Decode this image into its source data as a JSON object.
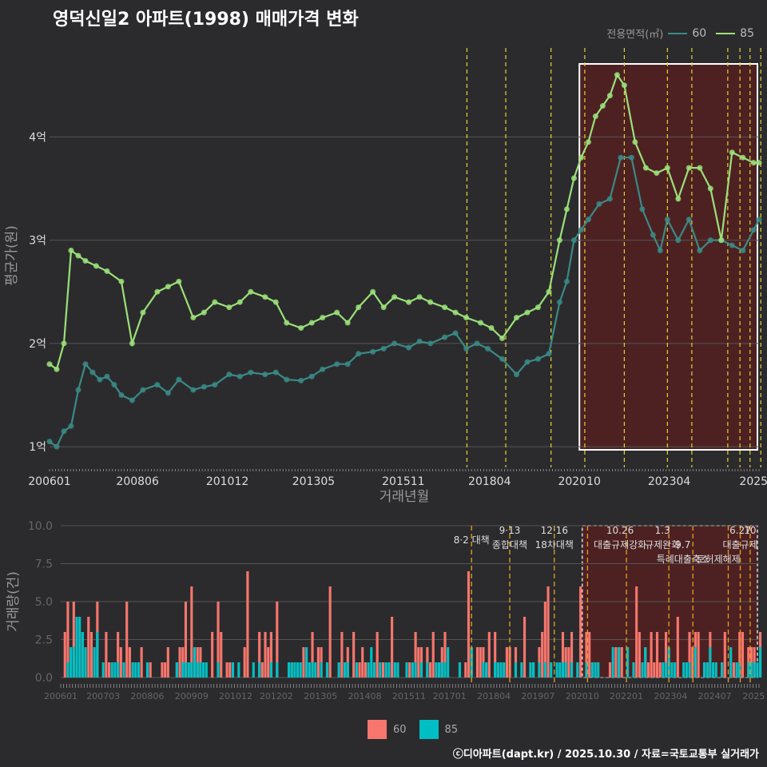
{
  "title": "영덕신일2 아파트(1998) 매매가격 변화",
  "footer": "ⓒ디아파트(dapt.kr) / 2025.10.30 / 자료=국토교통부 실거래가",
  "colors": {
    "s60": "#3a8a86",
    "s85": "#9be07a",
    "bar60": "#f8766d",
    "bar85": "#00bfc4",
    "policy": "#e6d430",
    "highlight": "#5a1f1f"
  },
  "legend_top": {
    "title": "전용면적(㎡)",
    "items": [
      "60",
      "85"
    ]
  },
  "legend_bottom": {
    "items": [
      "60",
      "85"
    ]
  },
  "chart_data": [
    {
      "type": "line",
      "title": "영덕신일2 아파트(1998) 매매가격 변화",
      "xlabel": "거래년월",
      "ylabel": "평균가(원)",
      "x_ticks": [
        "200601",
        "200806",
        "201012",
        "201305",
        "201511",
        "201804",
        "202010",
        "202304",
        "2025"
      ],
      "y_ticks": [
        "1억",
        "2억",
        "3억",
        "4억"
      ],
      "ylim": [
        0.8,
        4.9
      ],
      "xlim": [
        2006.0,
        2025.75
      ],
      "policy_dates": [
        2017.62,
        2018.7,
        2019.96,
        2020.9,
        2022.0,
        2023.2,
        2023.88,
        2024.88,
        2025.22,
        2025.5,
        2025.8
      ],
      "highlight_range": [
        2020.75,
        2025.75
      ],
      "series": [
        {
          "name": "60",
          "x": [
            2006.0,
            2006.2,
            2006.4,
            2006.6,
            2006.8,
            2007.0,
            2007.2,
            2007.4,
            2007.6,
            2007.8,
            2008.0,
            2008.3,
            2008.6,
            2009.0,
            2009.3,
            2009.6,
            2010.0,
            2010.3,
            2010.6,
            2011.0,
            2011.3,
            2011.6,
            2012.0,
            2012.3,
            2012.6,
            2013.0,
            2013.3,
            2013.6,
            2014.0,
            2014.3,
            2014.6,
            2015.0,
            2015.3,
            2015.6,
            2016.0,
            2016.3,
            2016.6,
            2017.0,
            2017.3,
            2017.6,
            2017.9,
            2018.2,
            2018.6,
            2019.0,
            2019.3,
            2019.6,
            2019.9,
            2020.2,
            2020.4,
            2020.6,
            2020.8,
            2021.0,
            2021.3,
            2021.6,
            2021.9,
            2022.2,
            2022.5,
            2022.8,
            2023.0,
            2023.2,
            2023.5,
            2023.8,
            2024.1,
            2024.4,
            2024.7,
            2025.0,
            2025.3,
            2025.6,
            2025.75
          ],
          "values": [
            1.05,
            1.0,
            1.15,
            1.2,
            1.55,
            1.8,
            1.72,
            1.65,
            1.68,
            1.6,
            1.5,
            1.45,
            1.55,
            1.6,
            1.52,
            1.65,
            1.55,
            1.58,
            1.6,
            1.7,
            1.68,
            1.72,
            1.7,
            1.72,
            1.65,
            1.64,
            1.68,
            1.75,
            1.8,
            1.8,
            1.9,
            1.92,
            1.95,
            2.0,
            1.96,
            2.02,
            2.0,
            2.06,
            2.1,
            1.95,
            2.0,
            1.95,
            1.85,
            1.7,
            1.82,
            1.85,
            1.9,
            2.4,
            2.6,
            3.0,
            3.1,
            3.2,
            3.35,
            3.4,
            3.8,
            3.8,
            3.3,
            3.05,
            2.9,
            3.2,
            3.0,
            3.2,
            2.9,
            3.0,
            3.0,
            2.95,
            2.9,
            3.1,
            3.2
          ]
        },
        {
          "name": "85",
          "x": [
            2006.0,
            2006.2,
            2006.4,
            2006.6,
            2006.8,
            2007.0,
            2007.3,
            2007.6,
            2008.0,
            2008.3,
            2008.6,
            2009.0,
            2009.3,
            2009.6,
            2010.0,
            2010.3,
            2010.6,
            2011.0,
            2011.3,
            2011.6,
            2012.0,
            2012.3,
            2012.6,
            2013.0,
            2013.3,
            2013.6,
            2014.0,
            2014.3,
            2014.6,
            2015.0,
            2015.3,
            2015.6,
            2016.0,
            2016.3,
            2016.6,
            2017.0,
            2017.3,
            2017.6,
            2018.0,
            2018.3,
            2018.6,
            2019.0,
            2019.3,
            2019.6,
            2019.9,
            2020.2,
            2020.4,
            2020.6,
            2020.8,
            2021.0,
            2021.2,
            2021.4,
            2021.6,
            2021.8,
            2022.0,
            2022.3,
            2022.6,
            2022.9,
            2023.2,
            2023.5,
            2023.8,
            2024.1,
            2024.4,
            2024.7,
            2025.0,
            2025.3,
            2025.6,
            2025.75
          ],
          "values": [
            1.8,
            1.75,
            2.0,
            2.9,
            2.85,
            2.8,
            2.75,
            2.7,
            2.6,
            2.0,
            2.3,
            2.5,
            2.55,
            2.6,
            2.25,
            2.3,
            2.4,
            2.35,
            2.4,
            2.5,
            2.45,
            2.4,
            2.2,
            2.15,
            2.2,
            2.25,
            2.3,
            2.2,
            2.35,
            2.5,
            2.35,
            2.45,
            2.4,
            2.45,
            2.4,
            2.35,
            2.3,
            2.25,
            2.2,
            2.15,
            2.05,
            2.25,
            2.3,
            2.35,
            2.5,
            3.0,
            3.3,
            3.6,
            3.8,
            3.95,
            4.2,
            4.3,
            4.4,
            4.6,
            4.5,
            3.95,
            3.7,
            3.65,
            3.7,
            3.4,
            3.7,
            3.7,
            3.5,
            3.0,
            3.85,
            3.8,
            3.75,
            3.75
          ]
        }
      ]
    },
    {
      "type": "bar",
      "xlabel": "",
      "ylabel": "거래량(건)",
      "x_ticks": [
        "200601",
        "200703",
        "200806",
        "200909",
        "201012",
        "201202",
        "201305",
        "201408",
        "201511",
        "201701",
        "201804",
        "201907",
        "202010",
        "202201",
        "202304",
        "202407",
        "2025"
      ],
      "y_ticks": [
        "0.0",
        "2.5",
        "5.0",
        "7.5",
        "10.0"
      ],
      "ylim": [
        0,
        10
      ],
      "xlim": [
        2006.0,
        2025.75
      ],
      "policy_labels": [
        {
          "date": "8·2 대책",
          "x": 2017.62
        },
        {
          "date": "9·13",
          "text": "종합대책",
          "x": 2018.7
        },
        {
          "date": "12·16",
          "text": "18차대책",
          "x": 2019.96
        },
        {
          "date": "10.26",
          "text": "대출규제강화",
          "x": 2021.82
        },
        {
          "date": "1.3",
          "text": "규제완화",
          "x": 2023.02
        },
        {
          "date": "9.7",
          "text": "특례대출축소",
          "x": 2023.6
        },
        {
          "date": "",
          "text": "토허제해제",
          "x": 2024.6
        },
        {
          "date": "6.27",
          "text": "대출규제",
          "x": 2025.22
        },
        {
          "date": "10",
          "text": "",
          "x": 2025.5
        }
      ],
      "highlight_range": [
        2020.75,
        2025.75
      ],
      "series": [
        {
          "name": "60",
          "values": "approximate monthly counts 0-10"
        },
        {
          "name": "85",
          "values": "approximate monthly counts 0-6"
        }
      ]
    }
  ]
}
